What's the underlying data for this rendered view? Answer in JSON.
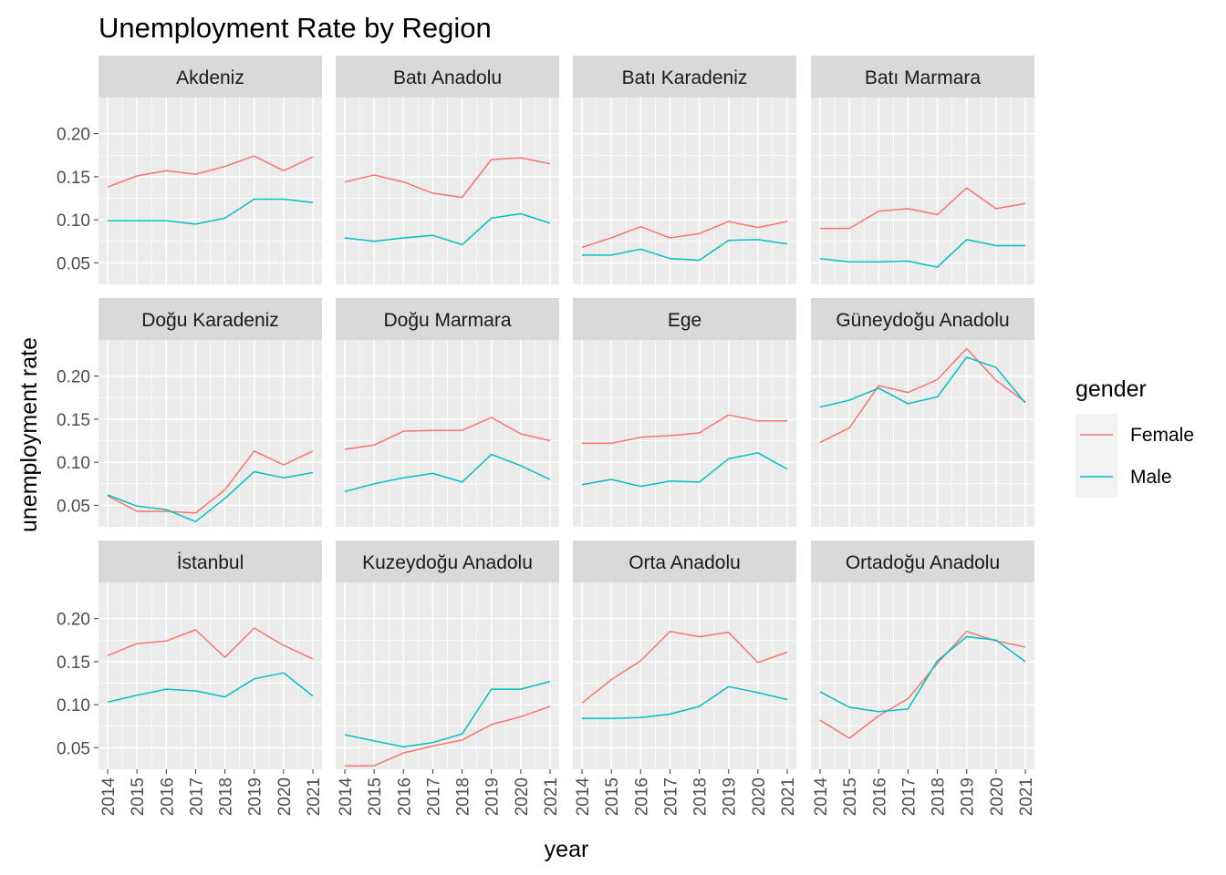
{
  "chart_data": {
    "type": "line",
    "title": "Unemployment Rate by Region",
    "xlabel": "year",
    "ylabel": "unemployment rate",
    "x": [
      2014,
      2015,
      2016,
      2017,
      2018,
      2019,
      2020,
      2021
    ],
    "x_tick_labels": [
      "2014",
      "2015",
      "2016",
      "2017",
      "2018",
      "2019",
      "2020",
      "2021"
    ],
    "ylim": [
      0.025,
      0.242
    ],
    "y_ticks": [
      0.05,
      0.1,
      0.15,
      0.2
    ],
    "y_tick_labels": [
      "0.05",
      "0.10",
      "0.15",
      "0.20"
    ],
    "grid": true,
    "legend": {
      "title": "gender",
      "position": "right",
      "entries": [
        {
          "name": "Female",
          "color": "#F8766D"
        },
        {
          "name": "Male",
          "color": "#00BFC4"
        }
      ]
    },
    "facets": [
      {
        "region": "Akdeniz",
        "series": [
          {
            "name": "Female",
            "values": [
              0.138,
              0.151,
              0.157,
              0.153,
              0.162,
              0.174,
              0.157,
              0.173
            ]
          },
          {
            "name": "Male",
            "values": [
              0.099,
              0.099,
              0.099,
              0.095,
              0.102,
              0.124,
              0.124,
              0.12
            ]
          }
        ]
      },
      {
        "region": "Batı Anadolu",
        "series": [
          {
            "name": "Female",
            "values": [
              0.144,
              0.152,
              0.144,
              0.131,
              0.126,
              0.17,
              0.172,
              0.165
            ]
          },
          {
            "name": "Male",
            "values": [
              0.079,
              0.075,
              0.079,
              0.082,
              0.071,
              0.102,
              0.107,
              0.096
            ]
          }
        ]
      },
      {
        "region": "Batı Karadeniz",
        "series": [
          {
            "name": "Female",
            "values": [
              0.068,
              0.079,
              0.092,
              0.079,
              0.084,
              0.098,
              0.091,
              0.098
            ]
          },
          {
            "name": "Male",
            "values": [
              0.059,
              0.059,
              0.066,
              0.055,
              0.053,
              0.076,
              0.077,
              0.072
            ]
          }
        ]
      },
      {
        "region": "Batı Marmara",
        "series": [
          {
            "name": "Female",
            "values": [
              0.09,
              0.09,
              0.11,
              0.113,
              0.106,
              0.137,
              0.113,
              0.119
            ]
          },
          {
            "name": "Male",
            "values": [
              0.055,
              0.051,
              0.051,
              0.052,
              0.045,
              0.077,
              0.07,
              0.07
            ]
          }
        ]
      },
      {
        "region": "Doğu Karadeniz",
        "series": [
          {
            "name": "Female",
            "values": [
              0.061,
              0.043,
              0.043,
              0.041,
              0.068,
              0.113,
              0.097,
              0.113
            ]
          },
          {
            "name": "Male",
            "values": [
              0.062,
              0.049,
              0.045,
              0.031,
              0.058,
              0.089,
              0.082,
              0.088
            ]
          }
        ]
      },
      {
        "region": "Doğu Marmara",
        "series": [
          {
            "name": "Female",
            "values": [
              0.115,
              0.12,
              0.136,
              0.137,
              0.137,
              0.152,
              0.133,
              0.125
            ]
          },
          {
            "name": "Male",
            "values": [
              0.066,
              0.075,
              0.082,
              0.087,
              0.077,
              0.109,
              0.096,
              0.08
            ]
          }
        ]
      },
      {
        "region": "Ege",
        "series": [
          {
            "name": "Female",
            "values": [
              0.122,
              0.122,
              0.129,
              0.131,
              0.134,
              0.155,
              0.148,
              0.148
            ]
          },
          {
            "name": "Male",
            "values": [
              0.074,
              0.08,
              0.072,
              0.078,
              0.077,
              0.104,
              0.111,
              0.092
            ]
          }
        ]
      },
      {
        "region": "Güneydoğu Anadolu",
        "series": [
          {
            "name": "Female",
            "values": [
              0.123,
              0.14,
              0.189,
              0.181,
              0.196,
              0.232,
              0.195,
              0.17
            ]
          },
          {
            "name": "Male",
            "values": [
              0.164,
              0.172,
              0.186,
              0.168,
              0.176,
              0.222,
              0.21,
              0.169
            ]
          }
        ]
      },
      {
        "region": "İstanbul",
        "series": [
          {
            "name": "Female",
            "values": [
              0.157,
              0.171,
              0.174,
              0.187,
              0.155,
              0.189,
              0.169,
              0.153
            ]
          },
          {
            "name": "Male",
            "values": [
              0.103,
              0.111,
              0.118,
              0.116,
              0.109,
              0.13,
              0.137,
              0.11
            ]
          }
        ]
      },
      {
        "region": "Kuzeydoğu Anadolu",
        "series": [
          {
            "name": "Female",
            "values": [
              0.029,
              0.029,
              0.044,
              0.052,
              0.059,
              0.077,
              0.086,
              0.098
            ]
          },
          {
            "name": "Male",
            "values": [
              0.065,
              0.058,
              0.051,
              0.056,
              0.066,
              0.118,
              0.118,
              0.127
            ]
          }
        ]
      },
      {
        "region": "Orta Anadolu",
        "series": [
          {
            "name": "Female",
            "values": [
              0.102,
              0.129,
              0.151,
              0.185,
              0.179,
              0.184,
              0.149,
              0.161
            ]
          },
          {
            "name": "Male",
            "values": [
              0.084,
              0.084,
              0.085,
              0.089,
              0.098,
              0.121,
              0.114,
              0.106
            ]
          }
        ]
      },
      {
        "region": "Ortadoğu Anadolu",
        "series": [
          {
            "name": "Female",
            "values": [
              0.082,
              0.061,
              0.087,
              0.107,
              0.148,
              0.185,
              0.174,
              0.167
            ]
          },
          {
            "name": "Male",
            "values": [
              0.115,
              0.097,
              0.092,
              0.095,
              0.151,
              0.179,
              0.175,
              0.15
            ]
          }
        ]
      }
    ]
  }
}
